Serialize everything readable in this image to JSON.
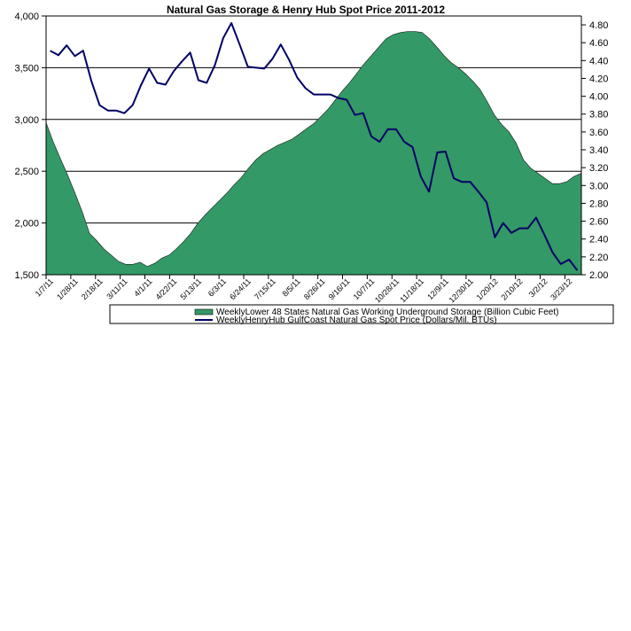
{
  "chart_data": {
    "type": "area",
    "title": "Natural Gas Storage & Henry Hub Spot Price 2011-2012",
    "xlabel": "",
    "ylabel": "",
    "y2label": "",
    "ylim": [
      1500,
      4000
    ],
    "y2lim": [
      2.0,
      4.9
    ],
    "y_ticks": [
      "1,500",
      "2,000",
      "2,500",
      "3,000",
      "3,500",
      "4,000"
    ],
    "y2_ticks": [
      "2.00",
      "2.20",
      "2.40",
      "2.60",
      "2.80",
      "3.00",
      "3.20",
      "3.40",
      "3.60",
      "3.80",
      "4.00",
      "4.20",
      "4.40",
      "4.60",
      "4.80"
    ],
    "grid": "horizontal",
    "legend_position": "bottom",
    "x_tick_labels": [
      "1/7/11",
      "1/28/11",
      "2/18/11",
      "3/11/11",
      "4/1/11",
      "4/22/11",
      "5/13/11",
      "6/3/11",
      "6/24/11",
      "7/15/11",
      "8/5/11",
      "8/26/11",
      "9/16/11",
      "10/7/11",
      "10/28/11",
      "11/18/11",
      "12/9/11",
      "12/30/11",
      "1/20/12",
      "2/10/12",
      "3/2/12",
      "3/23/12"
    ],
    "series": [
      {
        "name": "WeeklyLower 48 States Natural Gas Working Underground Storage  (Billion Cubic Feet)",
        "type": "area",
        "axis": "left",
        "color": "#339966",
        "values": [
          2970,
          2780,
          2620,
          2460,
          2290,
          2110,
          1900,
          1830,
          1750,
          1690,
          1630,
          1600,
          1600,
          1620,
          1580,
          1610,
          1660,
          1690,
          1750,
          1820,
          1900,
          2000,
          2080,
          2150,
          2220,
          2290,
          2370,
          2440,
          2530,
          2610,
          2670,
          2710,
          2750,
          2780,
          2810,
          2860,
          2910,
          2960,
          3030,
          3100,
          3190,
          3280,
          3360,
          3450,
          3540,
          3620,
          3700,
          3780,
          3820,
          3840,
          3850,
          3850,
          3840,
          3780,
          3700,
          3620,
          3550,
          3500,
          3440,
          3370,
          3290,
          3170,
          3040,
          2950,
          2880,
          2770,
          2610,
          2530,
          2480,
          2430,
          2380,
          2380,
          2400,
          2450,
          2480
        ]
      },
      {
        "name": "WeeklyHenryHub GulfCoast Natural Gas Spot Price (Dollars/Mil. BTUs)",
        "type": "line",
        "axis": "right",
        "color": "#000066",
        "values": [
          4.51,
          4.46,
          4.57,
          4.45,
          4.51,
          4.17,
          3.9,
          3.84,
          3.84,
          3.81,
          3.9,
          4.12,
          4.31,
          4.15,
          4.13,
          4.28,
          4.39,
          4.49,
          4.18,
          4.15,
          4.35,
          4.65,
          4.82,
          4.58,
          4.33,
          4.32,
          4.31,
          4.42,
          4.58,
          4.41,
          4.21,
          4.09,
          4.02,
          4.02,
          4.02,
          3.98,
          3.96,
          3.79,
          3.81,
          3.55,
          3.49,
          3.63,
          3.63,
          3.49,
          3.43,
          3.1,
          2.93,
          3.37,
          3.38,
          3.08,
          3.04,
          3.04,
          2.93,
          2.81,
          2.42,
          2.58,
          2.47,
          2.52,
          2.52,
          2.64,
          2.45,
          2.25,
          2.12,
          2.17,
          2.05
        ]
      }
    ]
  }
}
